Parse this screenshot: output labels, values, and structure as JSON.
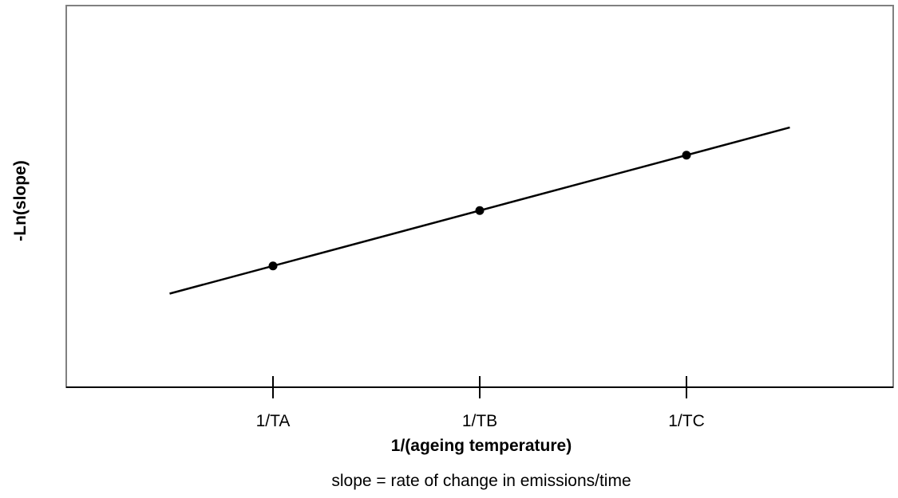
{
  "chart_data": {
    "type": "scatter",
    "categories": [
      "1/TA",
      "1/TB",
      "1/TC"
    ],
    "x": [
      1,
      2,
      3
    ],
    "y": [
      1,
      2,
      3
    ],
    "fit_line": {
      "x": [
        0.5,
        3.5
      ],
      "y": [
        0.5,
        3.5
      ]
    },
    "xlim": [
      0,
      4
    ],
    "ylim": [
      -1.19,
      5.7
    ],
    "xlabel": "1/(ageing temperature)",
    "ylabel": "-Ln(slope)",
    "note": "slope = rate of change in emissions/time",
    "grid": false,
    "legend": "none",
    "colors": {
      "line": "#000000",
      "points": "#000000",
      "frame": "#808080"
    }
  }
}
